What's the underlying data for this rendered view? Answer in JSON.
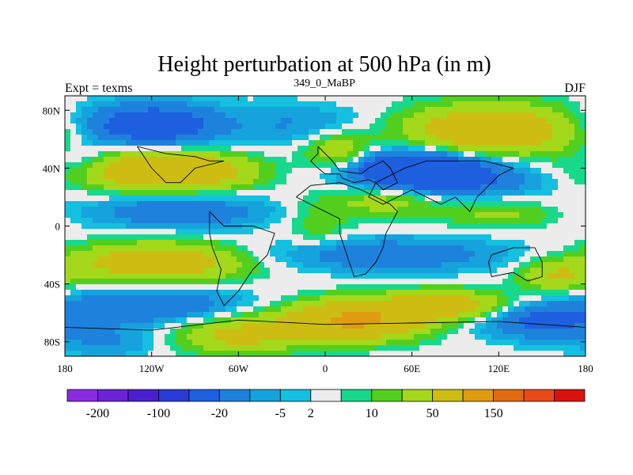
{
  "title": "Height perturbation at 500 hPa (in m)",
  "left_label": "Expt = texms",
  "center_label": "349_0_MaBP",
  "right_label": "DJF",
  "chart_data": {
    "type": "heatmap",
    "title": "Height perturbation at 500 hPa (in m)",
    "xlim": [
      -180,
      180
    ],
    "ylim": [
      -90,
      90
    ],
    "x_ticks": [
      {
        "value": -180,
        "label": "180"
      },
      {
        "value": -120,
        "label": "120W"
      },
      {
        "value": -60,
        "label": "60W"
      },
      {
        "value": 0,
        "label": "0"
      },
      {
        "value": 60,
        "label": "60E"
      },
      {
        "value": 120,
        "label": "120E"
      },
      {
        "value": 180,
        "label": "180"
      }
    ],
    "y_ticks": [
      {
        "value": 80,
        "label": "80N"
      },
      {
        "value": 40,
        "label": "40N"
      },
      {
        "value": 0,
        "label": "0"
      },
      {
        "value": -40,
        "label": "40S"
      },
      {
        "value": -80,
        "label": "80S"
      }
    ],
    "colorbar": {
      "colors": [
        "#8a2be2",
        "#6a24d6",
        "#4a1fcf",
        "#2a3ad6",
        "#1e5fe0",
        "#1e82dc",
        "#16a2dc",
        "#14bfe0",
        "#ececec",
        "#18d88c",
        "#52cf1e",
        "#a4d81a",
        "#cdbd12",
        "#e09c10",
        "#e06a10",
        "#e84a18",
        "#dd1010"
      ],
      "tick_labels": [
        "-200",
        "-100",
        "-20",
        "-5",
        "2",
        "10",
        "50",
        "150"
      ],
      "tick_after_box": [
        1,
        3,
        5,
        7,
        8,
        10,
        12,
        14
      ]
    },
    "anomalies": [
      {
        "lon": -120,
        "lat": 70,
        "value": -35,
        "sx": 34,
        "sy": 10
      },
      {
        "lon": -30,
        "lat": 68,
        "value": -6,
        "sx": 22,
        "sy": 12
      },
      {
        "lon": 0,
        "lat": 72,
        "value": -6,
        "sx": 30,
        "sy": 8
      },
      {
        "lon": 115,
        "lat": 66,
        "value": 40,
        "sx": 40,
        "sy": 12
      },
      {
        "lon": -110,
        "lat": 38,
        "value": 45,
        "sx": 40,
        "sy": 9
      },
      {
        "lon": -168,
        "lat": 44,
        "value": -10,
        "sx": 14,
        "sy": 8
      },
      {
        "lon": 60,
        "lat": 40,
        "value": -45,
        "sx": 40,
        "sy": 9
      },
      {
        "lon": 90,
        "lat": 30,
        "value": -15,
        "sx": 40,
        "sy": 7
      },
      {
        "lon": 10,
        "lat": 48,
        "value": 25,
        "sx": 18,
        "sy": 10
      },
      {
        "lon": -100,
        "lat": 10,
        "value": -18,
        "sx": 44,
        "sy": 8
      },
      {
        "lon": 40,
        "lat": 18,
        "value": 15,
        "sx": 26,
        "sy": 8
      },
      {
        "lon": 120,
        "lat": 8,
        "value": 12,
        "sx": 28,
        "sy": 6
      },
      {
        "lon": -5,
        "lat": 0,
        "value": 8,
        "sx": 16,
        "sy": 14
      },
      {
        "lon": -115,
        "lat": -25,
        "value": 35,
        "sx": 42,
        "sy": 9
      },
      {
        "lon": 40,
        "lat": -20,
        "value": -18,
        "sx": 60,
        "sy": 8
      },
      {
        "lon": 160,
        "lat": -35,
        "value": 20,
        "sx": 18,
        "sy": 8
      },
      {
        "lon": -120,
        "lat": -55,
        "value": -20,
        "sx": 44,
        "sy": 9
      },
      {
        "lon": 20,
        "lat": -65,
        "value": 55,
        "sx": 32,
        "sy": 9
      },
      {
        "lon": 85,
        "lat": -55,
        "value": 30,
        "sx": 32,
        "sy": 7
      },
      {
        "lon": 150,
        "lat": -65,
        "value": -25,
        "sx": 30,
        "sy": 9
      },
      {
        "lon": -60,
        "lat": -75,
        "value": 25,
        "sx": 30,
        "sy": 9
      },
      {
        "lon": -150,
        "lat": -80,
        "value": -10,
        "sx": 25,
        "sy": 8
      }
    ],
    "coastlines": [
      [
        [
          -5,
          55
        ],
        [
          0,
          50
        ],
        [
          5,
          45
        ],
        [
          10,
          38
        ],
        [
          25,
          36
        ],
        [
          30,
          40
        ],
        [
          40,
          45
        ],
        [
          45,
          40
        ],
        [
          50,
          30
        ],
        [
          40,
          25
        ],
        [
          35,
          30
        ],
        [
          30,
          32
        ],
        [
          20,
          30
        ],
        [
          12,
          33
        ],
        [
          10,
          36
        ],
        [
          0,
          36
        ],
        [
          -5,
          40
        ],
        [
          -10,
          45
        ],
        [
          -5,
          50
        ],
        [
          -5,
          55
        ]
      ],
      [
        [
          -20,
          20
        ],
        [
          -10,
          15
        ],
        [
          0,
          10
        ],
        [
          10,
          5
        ],
        [
          10,
          -5
        ],
        [
          15,
          -20
        ],
        [
          20,
          -35
        ],
        [
          28,
          -33
        ],
        [
          35,
          -25
        ],
        [
          40,
          -15
        ],
        [
          42,
          -5
        ],
        [
          50,
          10
        ],
        [
          45,
          15
        ],
        [
          35,
          20
        ],
        [
          25,
          25
        ],
        [
          10,
          30
        ],
        [
          -10,
          28
        ],
        [
          -20,
          20
        ]
      ],
      [
        [
          -80,
          10
        ],
        [
          -75,
          5
        ],
        [
          -70,
          0
        ],
        [
          -50,
          0
        ],
        [
          -35,
          -5
        ],
        [
          -40,
          -20
        ],
        [
          -50,
          -30
        ],
        [
          -60,
          -45
        ],
        [
          -70,
          -55
        ],
        [
          -75,
          -45
        ],
        [
          -72,
          -30
        ],
        [
          -78,
          -15
        ],
        [
          -80,
          -5
        ],
        [
          -80,
          10
        ]
      ],
      [
        [
          30,
          20
        ],
        [
          40,
          15
        ],
        [
          50,
          20
        ],
        [
          60,
          25
        ],
        [
          70,
          20
        ],
        [
          80,
          15
        ],
        [
          90,
          20
        ],
        [
          100,
          10
        ],
        [
          105,
          20
        ],
        [
          110,
          25
        ],
        [
          120,
          35
        ],
        [
          130,
          40
        ],
        [
          110,
          45
        ],
        [
          90,
          45
        ],
        [
          70,
          45
        ],
        [
          55,
          40
        ],
        [
          45,
          35
        ],
        [
          35,
          30
        ],
        [
          30,
          20
        ]
      ],
      [
        [
          115,
          -20
        ],
        [
          130,
          -15
        ],
        [
          145,
          -15
        ],
        [
          150,
          -25
        ],
        [
          150,
          -35
        ],
        [
          140,
          -38
        ],
        [
          130,
          -32
        ],
        [
          115,
          -35
        ],
        [
          113,
          -25
        ],
        [
          115,
          -20
        ]
      ],
      [
        [
          -180,
          -70
        ],
        [
          -120,
          -72
        ],
        [
          -60,
          -65
        ],
        [
          0,
          -68
        ],
        [
          60,
          -67
        ],
        [
          120,
          -66
        ],
        [
          180,
          -70
        ]
      ],
      [
        [
          -130,
          55
        ],
        [
          -110,
          50
        ],
        [
          -90,
          48
        ],
        [
          -80,
          45
        ],
        [
          -70,
          45
        ],
        [
          -90,
          40
        ],
        [
          -100,
          30
        ],
        [
          -110,
          30
        ],
        [
          -120,
          40
        ],
        [
          -130,
          55
        ]
      ]
    ]
  }
}
